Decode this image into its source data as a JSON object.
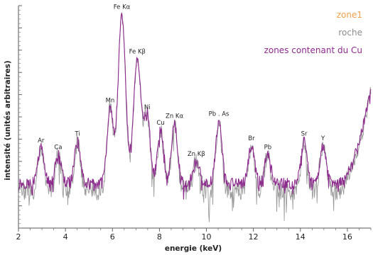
{
  "chart_data": {
    "type": "line",
    "xlabel": "energie (keV)",
    "ylabel": "intensité (unités arbitraires)",
    "xlim": [
      2,
      17
    ],
    "ylim": [
      0,
      1
    ],
    "x_ticks": [
      2,
      4,
      6,
      8,
      10,
      12,
      14,
      16
    ],
    "legend_position": "top-right",
    "legend": [
      {
        "name": "zone1",
        "color": "#f0a04b"
      },
      {
        "name": "roche",
        "color": "#8a8a8a"
      },
      {
        "name": "zones contenant du Cu",
        "color": "#8e2a8e"
      }
    ],
    "peaks": [
      {
        "label": "Ar",
        "x": 2.96,
        "y": 0.36
      },
      {
        "label": "Ca",
        "x": 3.69,
        "y": 0.33
      },
      {
        "label": "Ti",
        "x": 4.51,
        "y": 0.39
      },
      {
        "label": "Mn",
        "x": 5.9,
        "y": 0.54
      },
      {
        "label": "Fe Kα",
        "x": 6.4,
        "y": 0.96
      },
      {
        "label": "Fe Kβ",
        "x": 7.06,
        "y": 0.76
      },
      {
        "label": "Ni",
        "x": 7.48,
        "y": 0.51
      },
      {
        "label": "Cu",
        "x": 8.05,
        "y": 0.44
      },
      {
        "label": "Zn Kα",
        "x": 8.64,
        "y": 0.47
      },
      {
        "label": "Zn Kβ",
        "x": 9.57,
        "y": 0.3
      },
      {
        "label": "Pb . As",
        "x": 10.53,
        "y": 0.48
      },
      {
        "label": "Br",
        "x": 11.92,
        "y": 0.37
      },
      {
        "label": "Pb",
        "x": 12.61,
        "y": 0.33
      },
      {
        "label": "Sr",
        "x": 14.16,
        "y": 0.39
      },
      {
        "label": "Y",
        "x": 14.96,
        "y": 0.37
      }
    ],
    "series": [
      {
        "color": "#8e2a8e",
        "baseline": 0.2,
        "noise": 0.025,
        "end_rise": 0.63
      },
      {
        "color": "#9a9a9a",
        "baseline": 0.17,
        "noise": 0.045,
        "end_rise": 0.62
      }
    ]
  }
}
